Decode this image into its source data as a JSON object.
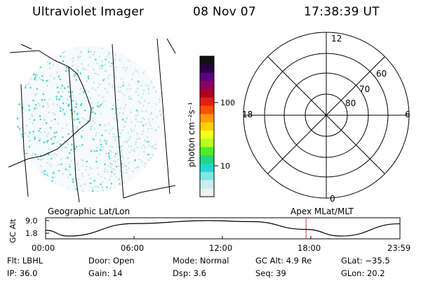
{
  "header": {
    "title": "Ultraviolet Imager",
    "date": "08 Nov 07",
    "time": "17:38:39 UT"
  },
  "colorbar": {
    "unit_label": "photon cm⁻²s⁻¹",
    "tick_labels": [
      "100",
      "10"
    ],
    "colors": [
      "#101010",
      "#2a0040",
      "#5a0080",
      "#8a0060",
      "#b00020",
      "#e02010",
      "#ff5000",
      "#ff9a00",
      "#ffd000",
      "#f4ff20",
      "#b8ff20",
      "#50ee20",
      "#20d880",
      "#20d8d0",
      "#7fe6e6",
      "#c8eeee",
      "#f0f0f0"
    ]
  },
  "map_panel": {
    "caption": "Geographic Lat/Lon",
    "colors": {
      "dot_strong": "#38d6d6",
      "dot_faint": "#c0e4e6"
    }
  },
  "polar_panel": {
    "caption": "Apex MLat/MLT",
    "mlt_labels": {
      "top": "12",
      "right": "6",
      "bottom": "0",
      "left": "18"
    },
    "lat_labels": [
      "60",
      "70",
      "80"
    ]
  },
  "altitude_plot": {
    "ylabel": "GC Alt",
    "y_ticks": [
      "9.0",
      "1.8"
    ],
    "x_ticks": [
      "00:00",
      "06:00",
      "12:00",
      "18:00",
      "23:59"
    ],
    "marker_color": "#d04040",
    "chart_data": {
      "type": "line",
      "x_hours": [
        0,
        1.5,
        6,
        11,
        14,
        17.6,
        20,
        23.98
      ],
      "y_re": [
        4.5,
        1.8,
        7.6,
        9.0,
        8.5,
        4.9,
        1.8,
        7.5
      ],
      "ylim": [
        1.8,
        9.0
      ],
      "current_time_hours": 17.64
    }
  },
  "footer": {
    "flt": "Flt: LBHL",
    "door": "Door: Open",
    "mode": "Mode: Normal",
    "gc_alt": "GC Alt: 4.9 Re",
    "glat": "GLat: −35.5",
    "ip": "IP: 36.0",
    "gain": "Gain: 14",
    "dsp": "Dsp:     3.6",
    "seq": "Seq: 39",
    "glon": "GLon:  20.2"
  }
}
